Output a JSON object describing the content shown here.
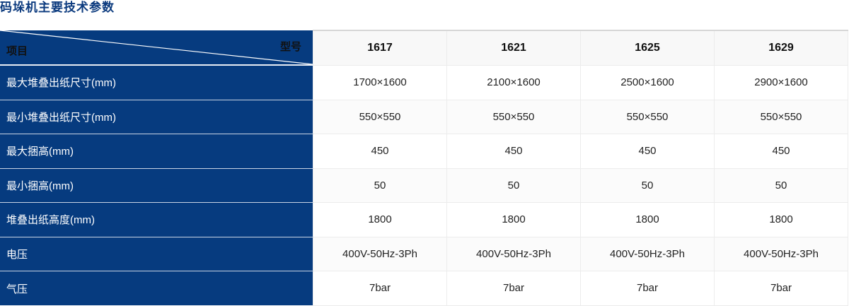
{
  "title": "码垛机主要技术参数",
  "table": {
    "corner_row_label": "项目",
    "corner_col_label": "型号",
    "models": [
      "1617",
      "1621",
      "1625",
      "1629"
    ],
    "rows": [
      {
        "label": "最大堆叠出纸尺寸(mm)",
        "values": [
          "1700×1600",
          "2100×1600",
          "2500×1600",
          "2900×1600"
        ]
      },
      {
        "label": "最小堆叠出纸尺寸(mm)",
        "values": [
          "550×550",
          "550×550",
          "550×550",
          "550×550"
        ]
      },
      {
        "label": "最大捆高(mm)",
        "values": [
          "450",
          "450",
          "450",
          "450"
        ]
      },
      {
        "label": "最小捆高(mm)",
        "values": [
          "50",
          "50",
          "50",
          "50"
        ]
      },
      {
        "label": "堆叠出纸高度(mm)",
        "values": [
          "1800",
          "1800",
          "1800",
          "1800"
        ]
      },
      {
        "label": "电压",
        "values": [
          "400V-50Hz-3Ph",
          "400V-50Hz-3Ph",
          "400V-50Hz-3Ph",
          "400V-50Hz-3Ph"
        ]
      },
      {
        "label": "气压",
        "values": [
          "7bar",
          "7bar",
          "7bar",
          "7bar"
        ]
      }
    ]
  },
  "colors": {
    "header_blue": "#063b7f",
    "title_blue": "#0b3a7e"
  }
}
